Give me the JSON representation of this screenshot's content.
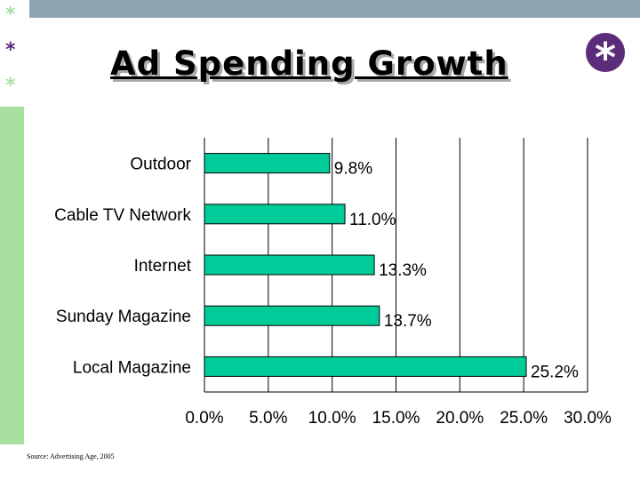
{
  "decor": {
    "stars": [
      "*",
      "*",
      "*"
    ],
    "badge_symbol": "*",
    "colors": {
      "top_bar": "#8fa4b3",
      "side_bar": "#a8e0a0",
      "accent": "#5b2c7a",
      "bar": "#00cc99"
    }
  },
  "header": {
    "title": "Ad Spending Growth"
  },
  "chart_data": {
    "type": "bar",
    "orientation": "horizontal",
    "categories": [
      "Outdoor",
      "Cable TV Network",
      "Internet",
      "Sunday Magazine",
      "Local Magazine"
    ],
    "values": [
      9.8,
      11.0,
      13.3,
      13.7,
      25.2
    ],
    "value_labels": [
      "9.8%",
      "11.0%",
      "13.3%",
      "13.7%",
      "25.2%"
    ],
    "xlim": [
      0,
      30
    ],
    "xticks": [
      0,
      5,
      10,
      15,
      20,
      25,
      30
    ],
    "xtick_labels": [
      "0.0%",
      "5.0%",
      "10.0%",
      "15.0%",
      "20.0%",
      "25.0%",
      "30.0%"
    ],
    "grid": "vertical",
    "legend": "none",
    "title": "",
    "xlabel": "",
    "ylabel": ""
  },
  "footer": {
    "source": "Source: Advertising Age, 2005"
  }
}
